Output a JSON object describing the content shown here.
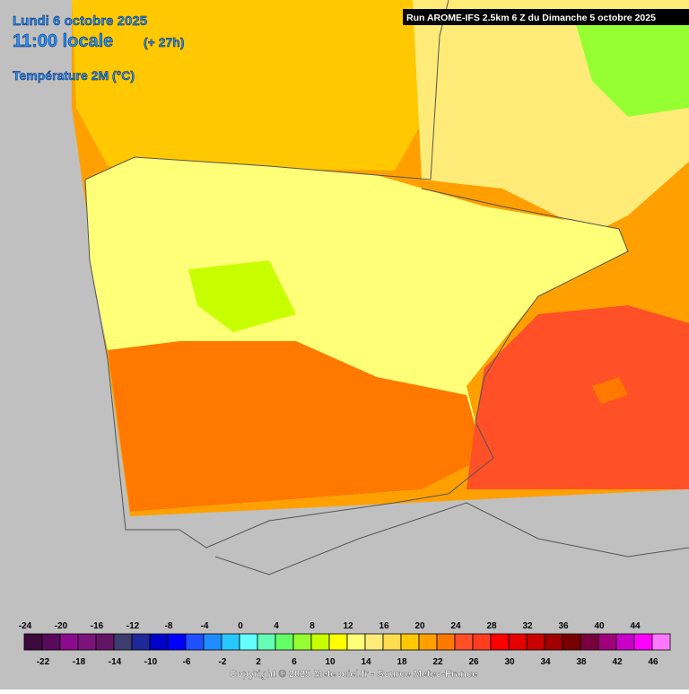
{
  "header": {
    "date": "Lundi 6 octobre 2025",
    "time": "11:00 locale",
    "lead": "(+ 27h)",
    "variable": "Température 2M (°C)",
    "run": "Run AROME-IFS 2.5km 6 Z du Dimanche 5 octobre 2025"
  },
  "legend": {
    "values": [
      -24,
      -22,
      -20,
      -18,
      -16,
      -14,
      -12,
      -10,
      -8,
      -6,
      -4,
      -2,
      0,
      2,
      4,
      6,
      8,
      10,
      12,
      14,
      16,
      18,
      20,
      22,
      24,
      26,
      28,
      30,
      32,
      34,
      36,
      38,
      40,
      42,
      44,
      46
    ],
    "colors": [
      "#3c0a3c",
      "#5a0a5a",
      "#8c0a8c",
      "#7a147a",
      "#641464",
      "#3c3c6e",
      "#1e2896",
      "#0000c8",
      "#0000ff",
      "#1e50ff",
      "#1e8cff",
      "#28c8ff",
      "#64ffff",
      "#64ffb4",
      "#64ff64",
      "#96ff32",
      "#c8ff00",
      "#ffff00",
      "#ffff78",
      "#ffeb78",
      "#ffdc50",
      "#ffc800",
      "#ffa000",
      "#ff7800",
      "#ff5028",
      "#ff3c1e",
      "#ff0000",
      "#e60000",
      "#c80000",
      "#a00000",
      "#780000",
      "#78003c",
      "#a0007a",
      "#c800c8",
      "#ff00ff",
      "#ff78ff"
    ]
  },
  "footer": {
    "copyright": "Copyright © 2025 Meteociel.fr - Source Meteo-France"
  }
}
